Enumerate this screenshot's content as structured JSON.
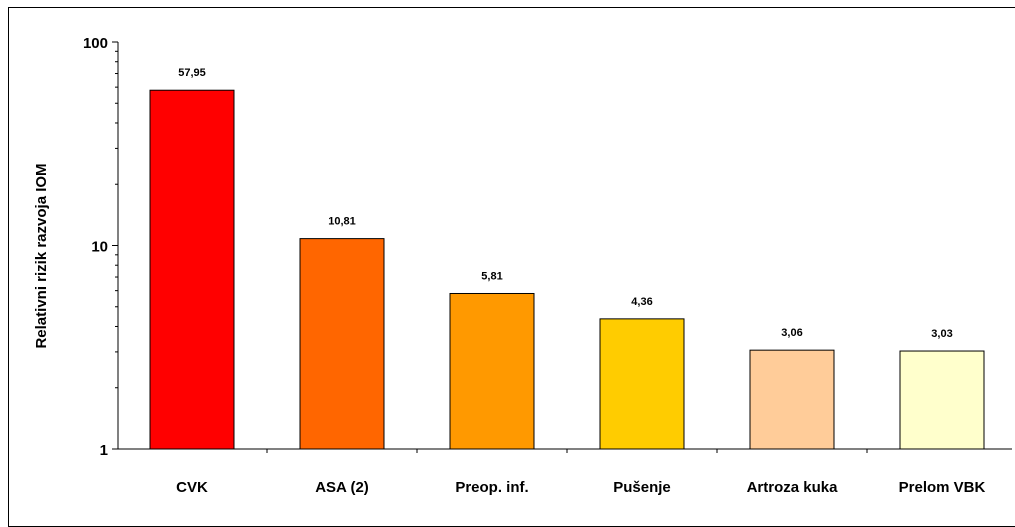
{
  "chart_data": {
    "type": "bar",
    "title": "",
    "xlabel": "",
    "ylabel": "Relativni rizik razvoja IOM",
    "yscale": "log",
    "ylim": [
      1,
      100
    ],
    "yticks": [
      {
        "value": 1,
        "label": "1"
      },
      {
        "value": 10,
        "label": "10"
      },
      {
        "value": 100,
        "label": "100"
      }
    ],
    "grid": false,
    "categories": [
      "CVK",
      "ASA (2)",
      "Preop. inf.",
      "Pušenje",
      "Artroza kuka",
      "Prelom VBK"
    ],
    "values": [
      57.95,
      10.81,
      5.81,
      4.36,
      3.06,
      3.03
    ],
    "value_labels": [
      "57,95",
      "10,81",
      "5,81",
      "4,36",
      "3,06",
      "3,03"
    ],
    "bar_colors": [
      "#ff0000",
      "#ff6600",
      "#ff9900",
      "#ffcc00",
      "#ffcc99",
      "#ffffcc"
    ]
  }
}
